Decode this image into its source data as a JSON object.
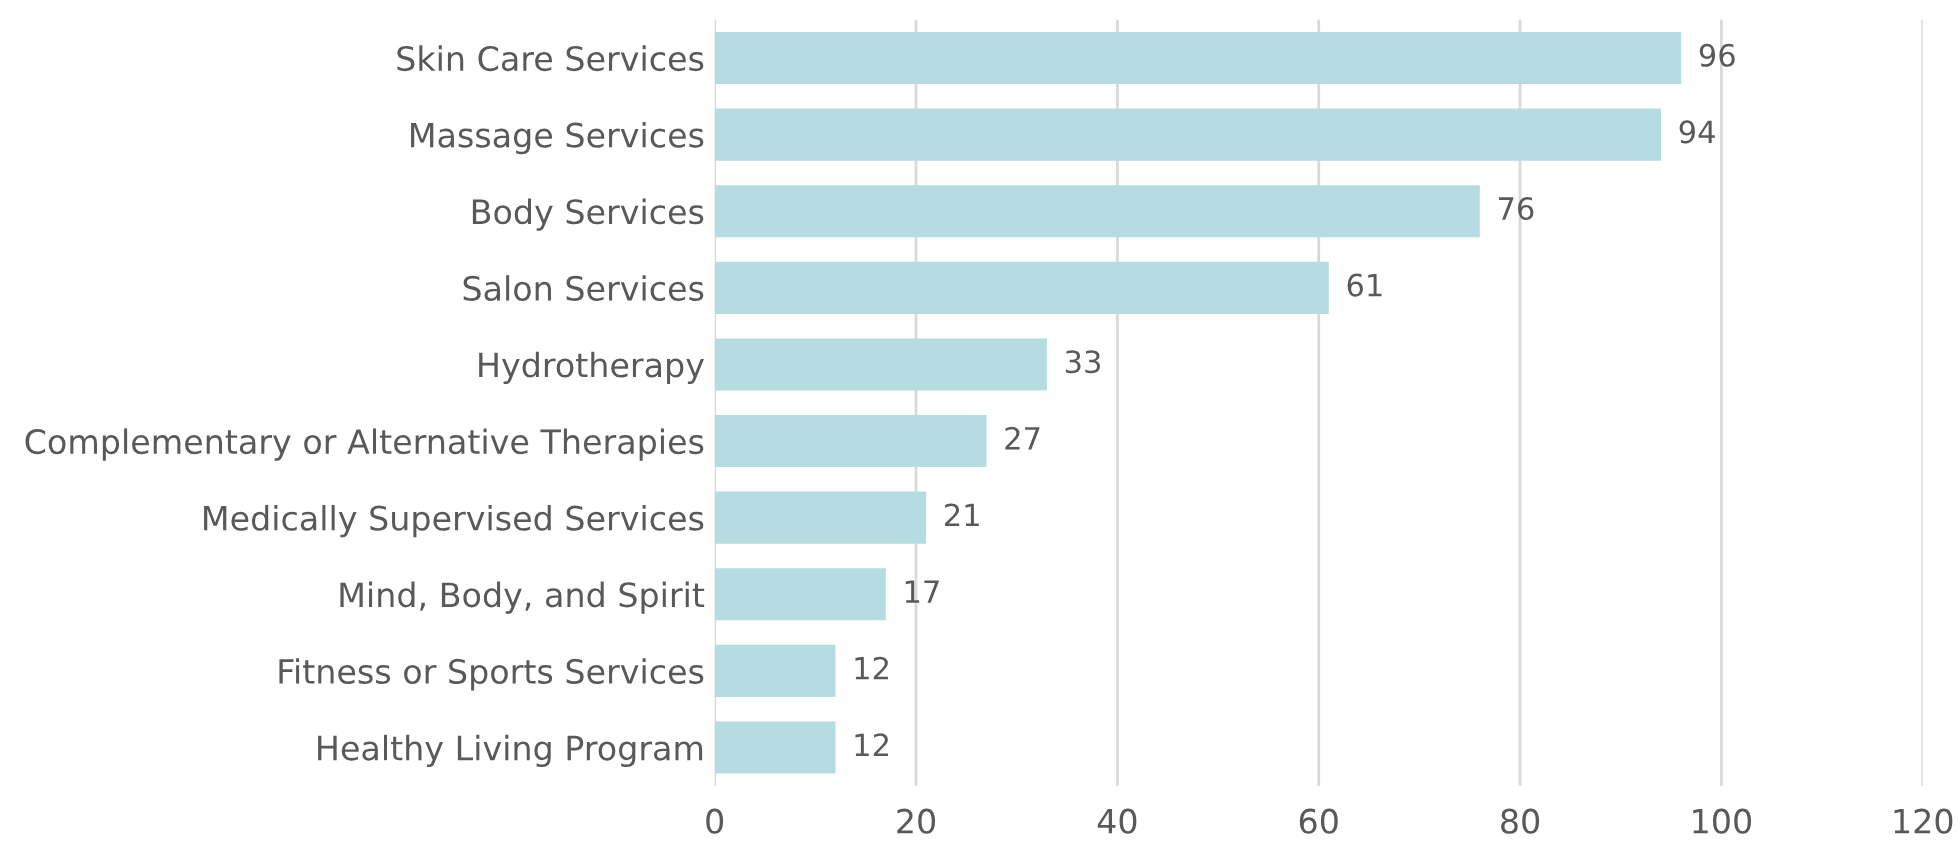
{
  "chart_data": {
    "type": "bar",
    "orientation": "horizontal",
    "categories": [
      "Skin Care Services",
      "Massage Services",
      "Body Services",
      "Salon Services",
      "Hydrotherapy",
      "Complementary or Alternative Therapies",
      "Medically Supervised Services",
      "Mind, Body, and Spirit",
      "Fitness or Sports Services",
      "Healthy Living Program"
    ],
    "values": [
      96,
      94,
      76,
      61,
      33,
      27,
      21,
      17,
      12,
      12
    ],
    "color": "#b5dde1",
    "xlim": [
      0,
      120
    ],
    "xticks": [
      0,
      20,
      40,
      60,
      80,
      100,
      120
    ],
    "grid": "x",
    "data_labels": true
  }
}
